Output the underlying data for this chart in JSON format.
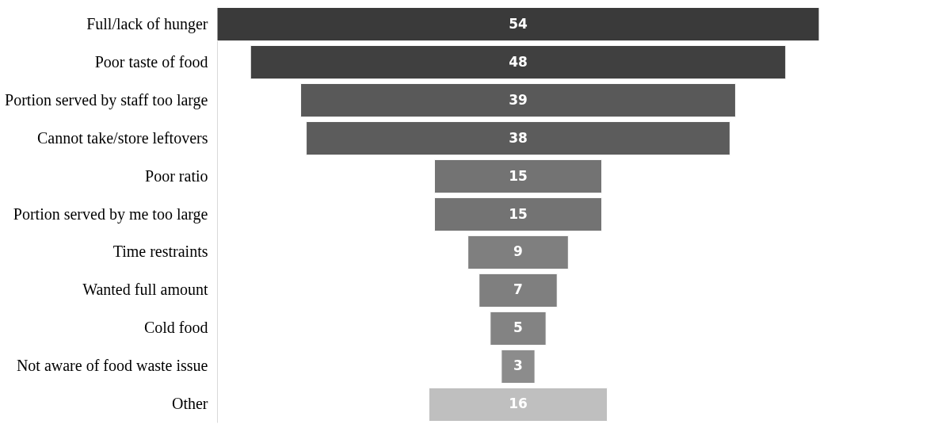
{
  "chart_data": {
    "type": "other",
    "categories": [
      "Full/lack of hunger",
      "Poor taste of food",
      "Portion served by staff too large",
      "Cannot take/store leftovers",
      "Poor ratio",
      "Portion served by me too large",
      "Time restraints",
      "Wanted full amount",
      "Cold food",
      "Not aware of food waste issue",
      "Other"
    ],
    "values": [
      54,
      48,
      39,
      38,
      15,
      15,
      9,
      7,
      5,
      3,
      16
    ],
    "colors": [
      "#3a3a3a",
      "#404040",
      "#595959",
      "#5c5c5c",
      "#737373",
      "#737373",
      "#7f7f7f",
      "#7f7f7f",
      "#838383",
      "#8c8c8c",
      "#bfbfbf"
    ],
    "data_labels": true
  }
}
